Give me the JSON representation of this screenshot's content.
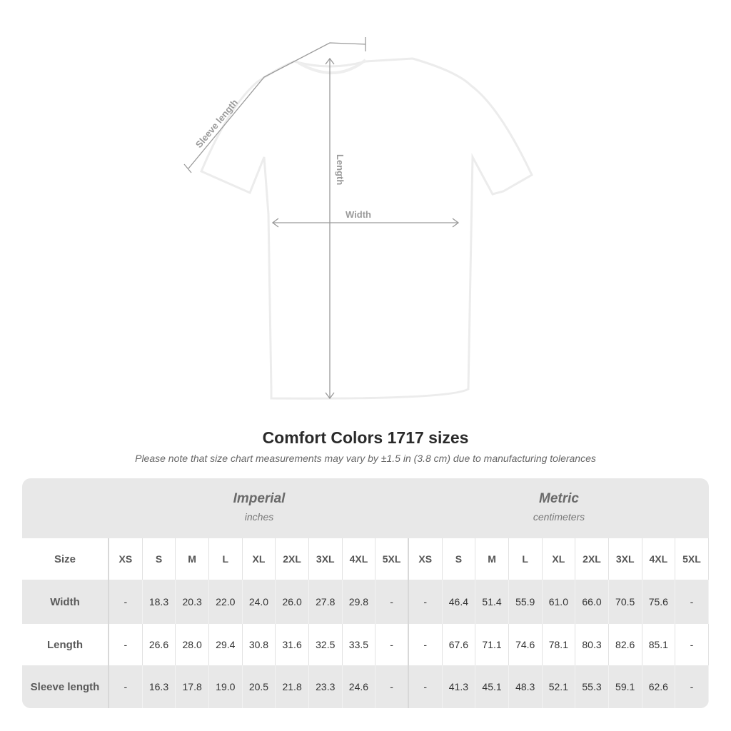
{
  "diagram": {
    "labels": {
      "sleeve": "Sleeve length",
      "length": "Length",
      "width": "Width"
    }
  },
  "title": "Comfort Colors 1717 sizes",
  "note": "Please note that size chart measurements may vary by ±1.5 in (3.8 cm) due to manufacturing tolerances",
  "table": {
    "imperial": {
      "label": "Imperial",
      "unit": "inches"
    },
    "metric": {
      "label": "Metric",
      "unit": "centimeters"
    },
    "size_label": "Size",
    "sizes": [
      "XS",
      "S",
      "M",
      "L",
      "XL",
      "2XL",
      "3XL",
      "4XL",
      "5XL"
    ],
    "rows": [
      {
        "label": "Width",
        "imperial": [
          "-",
          "18.3",
          "20.3",
          "22.0",
          "24.0",
          "26.0",
          "27.8",
          "29.8",
          "-"
        ],
        "metric": [
          "-",
          "46.4",
          "51.4",
          "55.9",
          "61.0",
          "66.0",
          "70.5",
          "75.6",
          "-"
        ]
      },
      {
        "label": "Length",
        "imperial": [
          "-",
          "26.6",
          "28.0",
          "29.4",
          "30.8",
          "31.6",
          "32.5",
          "33.5",
          "-"
        ],
        "metric": [
          "-",
          "67.6",
          "71.1",
          "74.6",
          "78.1",
          "80.3",
          "82.6",
          "85.1",
          "-"
        ]
      },
      {
        "label": "Sleeve length",
        "imperial": [
          "-",
          "16.3",
          "17.8",
          "19.0",
          "20.5",
          "21.8",
          "23.3",
          "24.6",
          "-"
        ],
        "metric": [
          "-",
          "41.3",
          "45.1",
          "48.3",
          "52.1",
          "55.3",
          "59.1",
          "62.6",
          "-"
        ]
      }
    ]
  }
}
